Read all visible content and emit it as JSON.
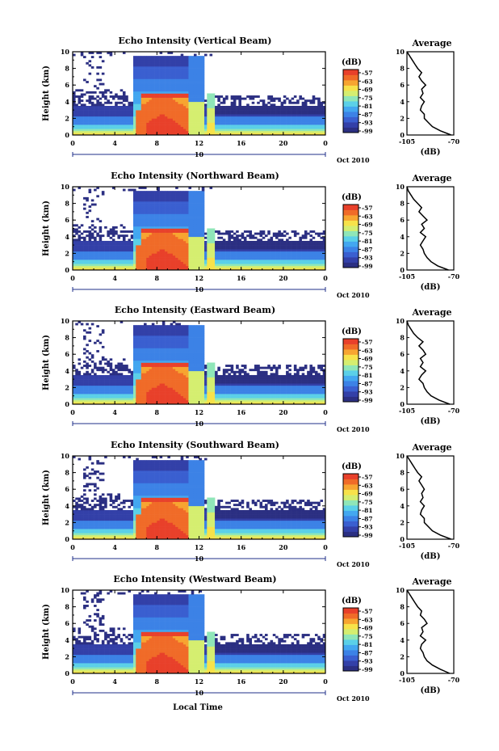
{
  "colors": {
    "scale": [
      "#2b2f82",
      "#3340a8",
      "#3a5fd0",
      "#3c82e6",
      "#43a7f0",
      "#5bd0e8",
      "#8fe6b8",
      "#d5ee70",
      "#f7e24a",
      "#f7a531",
      "#f06b28",
      "#e8402a"
    ],
    "line": "#000000",
    "background": "#ffffff"
  },
  "figure": {
    "date_label": "Oct 2010",
    "x_axis_label": "Local Time",
    "y_axis_label": "Height (km)",
    "colorbar_unit": "(dB)",
    "colorbar_ticks": [
      "-57",
      "-63",
      "-69",
      "-75",
      "-81",
      "-87",
      "-93",
      "-99"
    ],
    "date_marker_label": "10",
    "avg_title": "Average",
    "avg_xlabel": "(dB)"
  },
  "chart_data": [
    {
      "type": "heatmap",
      "title": "Echo Intensity (Vertical Beam)",
      "xlabel": "",
      "ylabel": "Height (km)",
      "x_ticks": [
        "0",
        "4",
        "8",
        "12",
        "16",
        "20",
        "0"
      ],
      "xlim": [
        0,
        24
      ],
      "y_ticks": [
        "0",
        "2",
        "4",
        "6",
        "8",
        "10"
      ],
      "ylim": [
        0,
        10
      ],
      "colorbar": {
        "unit": "(dB)",
        "range": [
          -99,
          -57
        ]
      },
      "average_profile": {
        "title": "Average",
        "xlabel": "(dB)",
        "x_ticks": [
          "-105",
          "-70"
        ],
        "xlim": [
          -105,
          -70
        ],
        "height": [
          0,
          0.5,
          1,
          1.5,
          2,
          2.5,
          3,
          3.5,
          4,
          4.5,
          5,
          5.5,
          6,
          6.5,
          7,
          7.5,
          8,
          8.5,
          9,
          9.5,
          10
        ],
        "values": [
          -72,
          -80,
          -86,
          -89,
          -92,
          -92,
          -95,
          -94,
          -92,
          -95,
          -93,
          -94,
          -91,
          -94,
          -96,
          -94,
          -97,
          -99,
          -101,
          -103,
          -105
        ]
      }
    },
    {
      "type": "heatmap",
      "title": "Echo Intensity (Northward Beam)",
      "xlabel": "",
      "ylabel": "Height (km)",
      "x_ticks": [
        "0",
        "4",
        "8",
        "12",
        "16",
        "20",
        "0"
      ],
      "xlim": [
        0,
        24
      ],
      "y_ticks": [
        "0",
        "2",
        "4",
        "6",
        "8",
        "10"
      ],
      "ylim": [
        0,
        10
      ],
      "colorbar": {
        "unit": "(dB)",
        "range": [
          -99,
          -57
        ]
      },
      "average_profile": {
        "title": "Average",
        "xlabel": "(dB)",
        "x_ticks": [
          "-105",
          "-70"
        ],
        "xlim": [
          -105,
          -70
        ],
        "height": [
          0,
          0.5,
          1,
          1.5,
          2,
          2.5,
          3,
          3.5,
          4,
          4.5,
          5,
          5.5,
          6,
          6.5,
          7,
          7.5,
          8,
          8.5,
          9,
          9.5,
          10
        ],
        "values": [
          -74,
          -82,
          -87,
          -90,
          -92,
          -93,
          -95,
          -93,
          -91,
          -95,
          -92,
          -94,
          -90,
          -93,
          -96,
          -94,
          -97,
          -100,
          -102,
          -104,
          -105
        ]
      }
    },
    {
      "type": "heatmap",
      "title": "Echo Intensity (Eastward Beam)",
      "xlabel": "",
      "ylabel": "Height (km)",
      "x_ticks": [
        "0",
        "4",
        "8",
        "12",
        "16",
        "20",
        "0"
      ],
      "xlim": [
        0,
        24
      ],
      "y_ticks": [
        "0",
        "2",
        "4",
        "6",
        "8",
        "10"
      ],
      "ylim": [
        0,
        10
      ],
      "colorbar": {
        "unit": "(dB)",
        "range": [
          -99,
          -57
        ]
      },
      "average_profile": {
        "title": "Average",
        "xlabel": "(dB)",
        "x_ticks": [
          "-105",
          "-70"
        ],
        "xlim": [
          -105,
          -70
        ],
        "height": [
          0,
          0.5,
          1,
          1.5,
          2,
          2.5,
          3,
          3.5,
          4,
          4.5,
          5,
          5.5,
          6,
          6.5,
          7,
          7.5,
          8,
          8.5,
          9,
          9.5,
          10
        ],
        "values": [
          -73,
          -81,
          -87,
          -90,
          -92,
          -93,
          -96,
          -94,
          -91,
          -95,
          -93,
          -95,
          -91,
          -93,
          -96,
          -93,
          -97,
          -100,
          -102,
          -104,
          -105
        ]
      }
    },
    {
      "type": "heatmap",
      "title": "Echo Intensity (Southward Beam)",
      "xlabel": "",
      "ylabel": "Height (km)",
      "x_ticks": [
        "0",
        "4",
        "8",
        "12",
        "16",
        "20",
        "0"
      ],
      "xlim": [
        0,
        24
      ],
      "y_ticks": [
        "0",
        "2",
        "4",
        "6",
        "8",
        "10"
      ],
      "ylim": [
        0,
        10
      ],
      "colorbar": {
        "unit": "(dB)",
        "range": [
          -99,
          -57
        ]
      },
      "average_profile": {
        "title": "Average",
        "xlabel": "(dB)",
        "x_ticks": [
          "-105",
          "-70"
        ],
        "xlim": [
          -105,
          -70
        ],
        "height": [
          0,
          0.5,
          1,
          1.5,
          2,
          2.5,
          3,
          3.5,
          4,
          4.5,
          5,
          5.5,
          6,
          6.5,
          7,
          7.5,
          8,
          8.5,
          9,
          9.5,
          10
        ],
        "values": [
          -72,
          -80,
          -86,
          -89,
          -92,
          -92,
          -95,
          -94,
          -92,
          -95,
          -93,
          -94,
          -92,
          -94,
          -96,
          -94,
          -97,
          -99,
          -101,
          -103,
          -105
        ]
      }
    },
    {
      "type": "heatmap",
      "title": "Echo Intensity (Westward Beam)",
      "xlabel": "Local Time",
      "ylabel": "Height (km)",
      "x_ticks": [
        "0",
        "4",
        "8",
        "12",
        "16",
        "20",
        "0"
      ],
      "xlim": [
        0,
        24
      ],
      "y_ticks": [
        "0",
        "2",
        "4",
        "6",
        "8",
        "10"
      ],
      "ylim": [
        0,
        10
      ],
      "colorbar": {
        "unit": "(dB)",
        "range": [
          -99,
          -57
        ]
      },
      "average_profile": {
        "title": "Average",
        "xlabel": "(dB)",
        "x_ticks": [
          "-105",
          "-70"
        ],
        "xlim": [
          -105,
          -70
        ],
        "height": [
          0,
          0.5,
          1,
          1.5,
          2,
          2.5,
          3,
          3.5,
          4,
          4.5,
          5,
          5.5,
          6,
          6.5,
          7,
          7.5,
          8,
          8.5,
          9,
          9.5,
          10
        ],
        "values": [
          -73,
          -80,
          -86,
          -90,
          -92,
          -93,
          -95,
          -94,
          -91,
          -95,
          -93,
          -94,
          -90,
          -92,
          -95,
          -94,
          -97,
          -99,
          -101,
          -103,
          -105
        ]
      }
    }
  ]
}
